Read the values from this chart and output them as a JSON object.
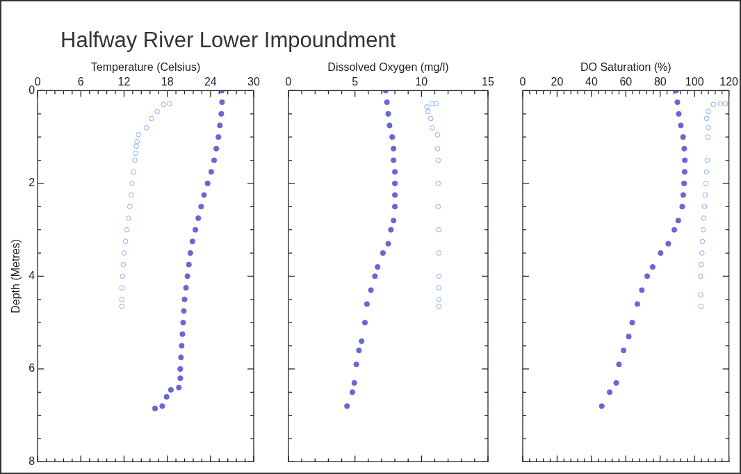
{
  "chart_data": [
    {
      "type": "scatter",
      "title": "Halfway River Lower Impoundment",
      "xlabel": "Temperature (Celsius)",
      "ylabel": "Depth (Metres)",
      "marker": "circle",
      "grid": false,
      "legend": false,
      "xlim": [
        0,
        30
      ],
      "xticks": [
        0,
        {
          "value": 1.2,
          "label": null
        },
        {
          "value": 2.4,
          "label": null
        },
        {
          "value": 3.6,
          "label": null
        },
        {
          "value": 4.8,
          "label": null
        },
        6,
        {
          "value": 7.2,
          "label": null
        },
        {
          "value": 8.4,
          "label": null
        },
        {
          "value": 9.6,
          "label": null
        },
        {
          "value": 10.8,
          "label": null
        },
        12,
        {
          "value": 13.2,
          "label": null
        },
        {
          "value": 14.4,
          "label": null
        },
        {
          "value": 15.6,
          "label": null
        },
        {
          "value": 16.8,
          "label": null
        },
        18,
        {
          "value": 19.2,
          "label": null
        },
        {
          "value": 20.4,
          "label": null
        },
        {
          "value": 21.6,
          "label": null
        },
        {
          "value": 22.8,
          "label": null
        },
        24,
        {
          "value": 25.2,
          "label": null
        },
        {
          "value": 26.4,
          "label": null
        },
        {
          "value": 27.6,
          "label": null
        },
        {
          "value": 28.8,
          "label": null
        },
        30
      ],
      "ylim": [
        8,
        0
      ],
      "yticks": [
        0,
        {
          "value": 0.5,
          "label": null
        },
        {
          "value": 1,
          "label": null
        },
        {
          "value": 1.5,
          "label": null
        },
        2,
        {
          "value": 2.5,
          "label": null
        },
        {
          "value": 3,
          "label": null
        },
        {
          "value": 3.5,
          "label": null
        },
        4,
        {
          "value": 4.5,
          "label": null
        },
        {
          "value": 5,
          "label": null
        },
        {
          "value": 5.5,
          "label": null
        },
        6,
        {
          "value": 6.5,
          "label": null
        },
        {
          "value": 7,
          "label": null
        },
        {
          "value": 7.5,
          "label": null
        },
        8
      ],
      "series": [
        {
          "color": "#6666dd",
          "x": [
            25.6,
            25.6,
            25.5,
            25.3,
            25.1,
            24.8,
            24.5,
            24.1,
            23.6,
            23.1,
            22.7,
            22.3,
            21.9,
            21.5,
            21.2,
            21.0,
            20.8,
            20.6,
            20.4,
            20.3,
            20.2,
            20.1,
            20.0,
            19.9,
            19.8,
            19.8,
            19.6,
            18.5,
            17.9,
            17.3,
            16.3
          ],
          "values": [
            0,
            0.25,
            0.5,
            0.75,
            1.0,
            1.25,
            1.5,
            1.75,
            2.0,
            2.25,
            2.5,
            2.75,
            3.0,
            3.25,
            3.5,
            3.75,
            4.0,
            4.25,
            4.5,
            4.75,
            5.0,
            5.25,
            5.5,
            5.75,
            6.0,
            6.2,
            6.4,
            6.45,
            6.6,
            6.8,
            6.85
          ]
        },
        {
          "color": "#6699ee",
          "x": [
            18.3,
            17.5,
            16.6,
            15.8,
            15.1,
            14.0,
            13.8,
            13.7,
            13.6,
            13.5,
            13.3,
            13.1,
            13.0,
            12.8,
            12.6,
            12.4,
            12.2,
            12.0,
            11.9,
            11.8,
            11.7,
            11.7,
            11.7
          ],
          "values": [
            0.28,
            0.3,
            0.45,
            0.6,
            0.8,
            0.95,
            1.1,
            1.2,
            1.35,
            1.5,
            1.75,
            2.0,
            2.25,
            2.5,
            2.75,
            3.0,
            3.25,
            3.5,
            3.75,
            4.0,
            4.25,
            4.5,
            4.65
          ]
        }
      ]
    },
    {
      "type": "scatter",
      "xlabel": "Dissolved Oxygen (mg/l)",
      "marker": "circle",
      "grid": false,
      "legend": false,
      "tick_labels": "x",
      "xlim": [
        0,
        15
      ],
      "xticks": [
        0,
        {
          "value": 1,
          "label": null
        },
        {
          "value": 2,
          "label": null
        },
        {
          "value": 3,
          "label": null
        },
        {
          "value": 4,
          "label": null
        },
        5,
        {
          "value": 6,
          "label": null
        },
        {
          "value": 7,
          "label": null
        },
        {
          "value": 8,
          "label": null
        },
        {
          "value": 9,
          "label": null
        },
        10,
        {
          "value": 11,
          "label": null
        },
        {
          "value": 12,
          "label": null
        },
        {
          "value": 13,
          "label": null
        },
        {
          "value": 14,
          "label": null
        },
        15
      ],
      "ylim": [
        8,
        0
      ],
      "yticks": [
        0,
        {
          "value": 0.5,
          "label": null
        },
        {
          "value": 1,
          "label": null
        },
        {
          "value": 1.5,
          "label": null
        },
        2,
        {
          "value": 2.5,
          "label": null
        },
        {
          "value": 3,
          "label": null
        },
        {
          "value": 3.5,
          "label": null
        },
        4,
        {
          "value": 4.5,
          "label": null
        },
        {
          "value": 5,
          "label": null
        },
        {
          "value": 5.5,
          "label": null
        },
        6,
        {
          "value": 6.5,
          "label": null
        },
        {
          "value": 7,
          "label": null
        },
        {
          "value": 7.5,
          "label": null
        },
        8
      ],
      "series": [
        {
          "color": "#6666dd",
          "x": [
            7.3,
            7.4,
            7.5,
            7.6,
            7.8,
            7.9,
            7.9,
            8.0,
            8.0,
            8.0,
            8.0,
            7.9,
            7.7,
            7.5,
            7.1,
            6.7,
            6.5,
            6.2,
            5.9,
            5.75,
            5.5,
            5.3,
            5.1,
            4.95,
            4.8,
            4.4
          ],
          "values": [
            0,
            0.25,
            0.5,
            0.75,
            1.0,
            1.25,
            1.5,
            1.75,
            2.0,
            2.25,
            2.5,
            2.8,
            3.0,
            3.3,
            3.5,
            3.8,
            4.0,
            4.3,
            4.6,
            5.0,
            5.4,
            5.6,
            5.9,
            6.3,
            6.5,
            6.8
          ]
        },
        {
          "color": "#6699ee",
          "x": [
            11.1,
            10.8,
            10.4,
            10.5,
            10.7,
            10.8,
            11.2,
            11.2,
            11.25,
            11.25,
            11.25,
            11.3,
            11.3,
            11.3,
            11.3,
            11.3,
            11.3
          ],
          "values": [
            0.28,
            0.28,
            0.35,
            0.45,
            0.6,
            0.8,
            0.95,
            1.25,
            1.5,
            2.0,
            2.5,
            3.0,
            3.5,
            4.0,
            4.25,
            4.5,
            4.65
          ]
        }
      ]
    },
    {
      "type": "scatter",
      "xlabel": "DO Saturation (%)",
      "marker": "circle",
      "grid": false,
      "legend": false,
      "tick_labels": "x",
      "xlim": [
        0,
        120
      ],
      "xticks": [
        0,
        {
          "value": 4,
          "label": null
        },
        {
          "value": 8,
          "label": null
        },
        {
          "value": 12,
          "label": null
        },
        {
          "value": 16,
          "label": null
        },
        20,
        {
          "value": 24,
          "label": null
        },
        {
          "value": 28,
          "label": null
        },
        {
          "value": 32,
          "label": null
        },
        {
          "value": 36,
          "label": null
        },
        40,
        {
          "value": 44,
          "label": null
        },
        {
          "value": 48,
          "label": null
        },
        {
          "value": 52,
          "label": null
        },
        {
          "value": 56,
          "label": null
        },
        60,
        {
          "value": 64,
          "label": null
        },
        {
          "value": 68,
          "label": null
        },
        {
          "value": 72,
          "label": null
        },
        {
          "value": 76,
          "label": null
        },
        80,
        {
          "value": 84,
          "label": null
        },
        {
          "value": 88,
          "label": null
        },
        {
          "value": 92,
          "label": null
        },
        {
          "value": 96,
          "label": null
        },
        100,
        {
          "value": 104,
          "label": null
        },
        {
          "value": 108,
          "label": null
        },
        {
          "value": 112,
          "label": null
        },
        {
          "value": 116,
          "label": null
        },
        120
      ],
      "ylim": [
        8,
        0
      ],
      "yticks": [
        0,
        {
          "value": 0.5,
          "label": null
        },
        {
          "value": 1,
          "label": null
        },
        {
          "value": 1.5,
          "label": null
        },
        2,
        {
          "value": 2.5,
          "label": null
        },
        {
          "value": 3,
          "label": null
        },
        {
          "value": 3.5,
          "label": null
        },
        4,
        {
          "value": 4.5,
          "label": null
        },
        {
          "value": 5,
          "label": null
        },
        {
          "value": 5.5,
          "label": null
        },
        6,
        {
          "value": 6.5,
          "label": null
        },
        {
          "value": 7,
          "label": null
        },
        {
          "value": 7.5,
          "label": null
        },
        8
      ],
      "series": [
        {
          "color": "#6666dd",
          "x": [
            89.3,
            90.0,
            90.8,
            92.0,
            93.3,
            94.0,
            94.3,
            94.2,
            93.9,
            93.4,
            92.8,
            90.5,
            88.2,
            84.7,
            80.2,
            75.6,
            72.4,
            69.3,
            66.7,
            63.7,
            61.7,
            58.7,
            56.0,
            54.4,
            50.6,
            46.0
          ],
          "values": [
            0,
            0.25,
            0.5,
            0.75,
            1.0,
            1.25,
            1.5,
            1.75,
            2.0,
            2.25,
            2.5,
            2.8,
            3.0,
            3.3,
            3.5,
            3.8,
            4.0,
            4.3,
            4.6,
            5.0,
            5.3,
            5.6,
            5.9,
            6.3,
            6.5,
            6.8
          ]
        },
        {
          "color": "#6699ee",
          "x": [
            118,
            115,
            111,
            108,
            107,
            108,
            107.7,
            107.4,
            107.0,
            106.6,
            106.2,
            105.8,
            105.4,
            105,
            104.6,
            104.3,
            103.9,
            103.5,
            103.6,
            103.8
          ],
          "values": [
            0.28,
            0.28,
            0.3,
            0.45,
            0.6,
            0.8,
            1.0,
            1.5,
            1.75,
            2.0,
            2.25,
            2.5,
            2.75,
            3.0,
            3.25,
            3.5,
            3.75,
            4.0,
            4.4,
            4.65
          ]
        }
      ]
    }
  ]
}
